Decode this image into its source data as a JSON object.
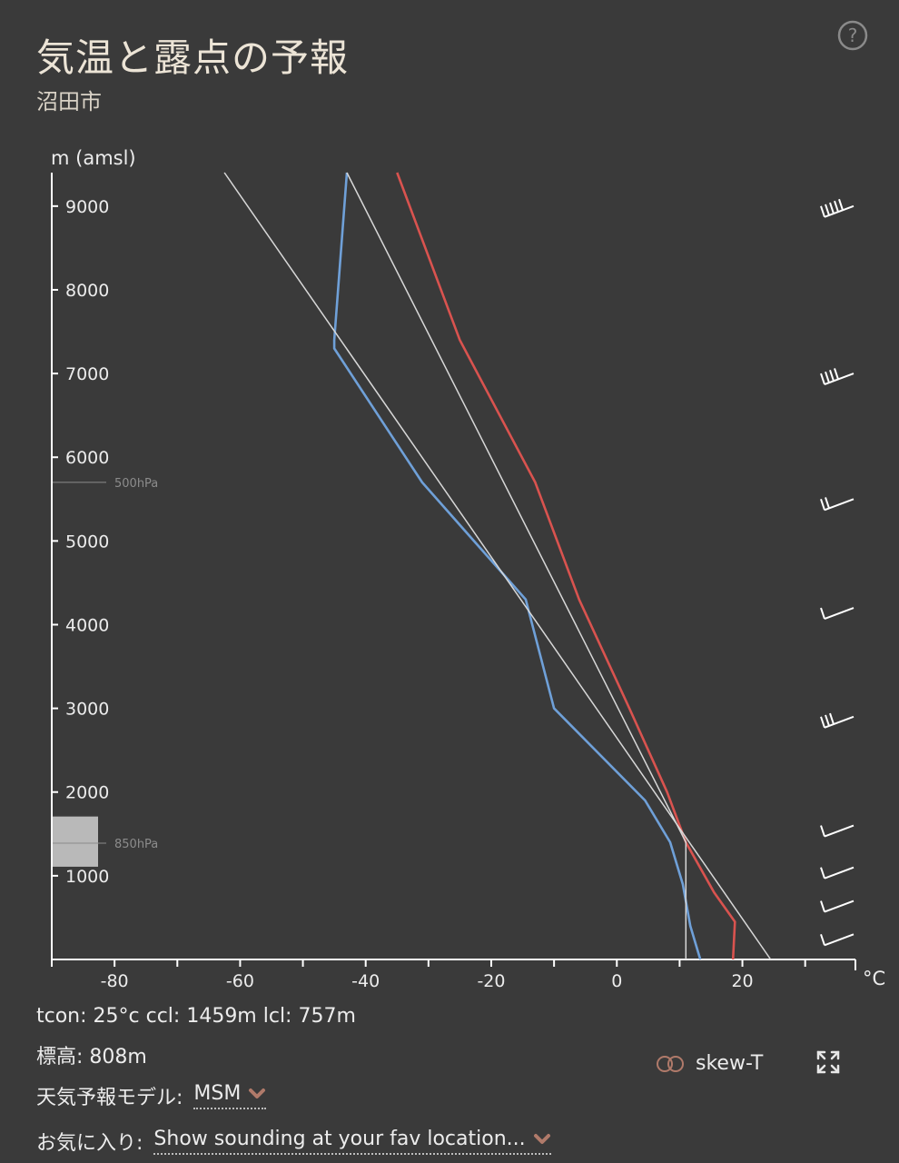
{
  "header": {
    "title": "気温と露点の予報",
    "location": "沼田市",
    "help_icon": "question-circle-icon"
  },
  "chart_data": {
    "type": "line",
    "ylabel": "m (amsl)",
    "xlabel": "°C",
    "xlim": [
      -90,
      38
    ],
    "ylim": [
      0,
      9400
    ],
    "x_ticks": [
      -80,
      -60,
      -40,
      -20,
      0,
      20
    ],
    "y_ticks": [
      1000,
      2000,
      3000,
      4000,
      5000,
      6000,
      7000,
      8000,
      9000
    ],
    "pressure_levels": [
      {
        "label": "500hPa",
        "height": 5700
      },
      {
        "label": "850hPa",
        "height": 1390
      }
    ],
    "terrain": {
      "height": 808
    },
    "series": [
      {
        "color": "#d9534f",
        "points": [
          [
            18.5,
            0
          ],
          [
            18.8,
            450
          ],
          [
            15.5,
            800
          ],
          [
            11,
            1400
          ],
          [
            8,
            2000
          ],
          [
            2,
            3000
          ],
          [
            -6,
            4300
          ],
          [
            -13,
            5700
          ],
          [
            -25,
            7400
          ],
          [
            -35,
            9400
          ]
        ]
      },
      {
        "color": "#6fa0d8",
        "points": [
          [
            13.3,
            0
          ],
          [
            11.7,
            400
          ],
          [
            10.5,
            900
          ],
          [
            8.5,
            1400
          ],
          [
            4.5,
            1900
          ],
          [
            -10,
            3000
          ],
          [
            -14.5,
            4300
          ],
          [
            -31,
            5700
          ],
          [
            -45,
            7300
          ],
          [
            -45,
            7400
          ],
          [
            -43,
            9400
          ]
        ]
      },
      {
        "color": "#d8d8d8",
        "points": [
          [
            24.5,
            0
          ],
          [
            -62.5,
            9400
          ]
        ]
      },
      {
        "color": "#d8d8d8",
        "points": [
          [
            11,
            0
          ],
          [
            11,
            1400
          ],
          [
            -43,
            9400
          ]
        ]
      }
    ],
    "wind_barbs": [
      {
        "height": 9000,
        "barbs": 5
      },
      {
        "height": 7000,
        "barbs": 4
      },
      {
        "height": 5500,
        "barbs": 2
      },
      {
        "height": 4200,
        "barbs": 1
      },
      {
        "height": 2900,
        "barbs": 3
      },
      {
        "height": 1600,
        "barbs": 1
      },
      {
        "height": 1100,
        "barbs": 1
      },
      {
        "height": 700,
        "barbs": 1
      },
      {
        "height": 300,
        "barbs": 1
      }
    ]
  },
  "info": {
    "stats": "tcon: 25°c ccl: 1459m lcl: 757m",
    "elevation": "標高: 808m"
  },
  "controls": {
    "model_label": "天気予報モデル:",
    "model_value": "MSM",
    "fav_label": "お気に入り:",
    "fav_value": "Show sounding at your fav location...",
    "skew_label": "skew-T",
    "toggle_icon": "toggle-icon",
    "expand_icon": "expand-icon",
    "accent": "#b07a6a"
  }
}
